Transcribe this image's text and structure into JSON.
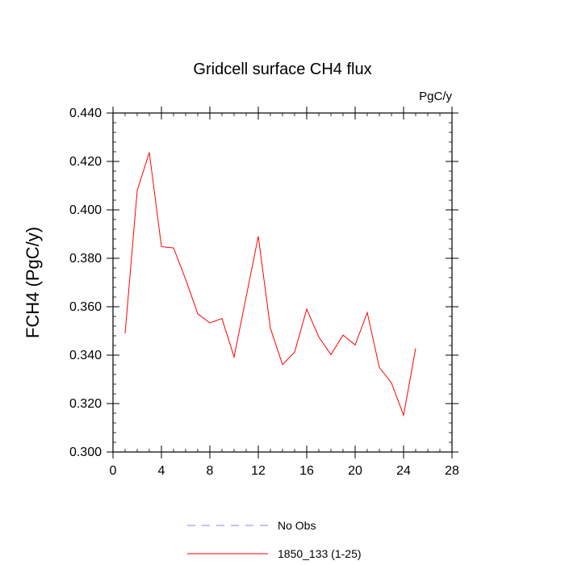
{
  "chart_data": {
    "type": "line",
    "title": "Gridcell surface CH4 flux",
    "units_label": "PgC/y",
    "xlabel": "",
    "ylabel": "FCH4  (PgC/y)",
    "xlim": [
      0,
      28
    ],
    "ylim": [
      0.3,
      0.44
    ],
    "x_ticks": [
      0,
      4,
      8,
      12,
      16,
      20,
      24,
      28
    ],
    "x_tick_labels": [
      "0",
      "4",
      "8",
      "12",
      "16",
      "20",
      "24",
      "28"
    ],
    "y_ticks": [
      0.3,
      0.32,
      0.34,
      0.36,
      0.38,
      0.4,
      0.42,
      0.44
    ],
    "y_tick_labels": [
      "0.300",
      "0.320",
      "0.340",
      "0.360",
      "0.380",
      "0.400",
      "0.420",
      "0.440"
    ],
    "grid": false,
    "legend_position": "bottom",
    "series": [
      {
        "name": "1850_133 (1-25)",
        "color": "#ff0000",
        "dash": "solid",
        "x": [
          1,
          2,
          3,
          4,
          5,
          6,
          7,
          8,
          9,
          10,
          11,
          12,
          13,
          14,
          15,
          16,
          17,
          18,
          19,
          20,
          21,
          22,
          23,
          24,
          25
        ],
        "y": [
          0.349,
          0.408,
          0.4237,
          0.3848,
          0.3843,
          0.3713,
          0.3571,
          0.3533,
          0.3551,
          0.3393,
          0.3641,
          0.3891,
          0.3511,
          0.3361,
          0.3412,
          0.359,
          0.3475,
          0.3402,
          0.3483,
          0.3442,
          0.3576,
          0.3349,
          0.3285,
          0.3152,
          0.3428
        ]
      }
    ],
    "legend": [
      {
        "label": "No Obs",
        "color": "#8080ff",
        "dash": "dashed"
      },
      {
        "label": "1850_133 (1-25)",
        "color": "#ff0000",
        "dash": "solid"
      }
    ]
  }
}
